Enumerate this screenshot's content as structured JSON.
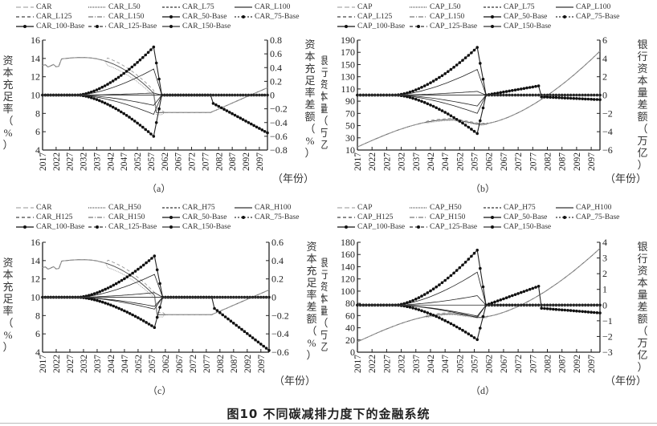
{
  "figure_caption": "图10   不同碳减排力度下的金融系统",
  "chart_data": [
    {
      "type": "line",
      "panel_label": "（a）",
      "legend": [
        "CAR",
        "CAR_L50",
        "CAR_L75",
        "CAR_L100",
        "CAR_L125",
        "CAR_L150",
        "CAR_50-Base",
        "CAR_75-Base",
        "CAR_100-Base",
        "CAR_125-Base",
        "CAR_150-Base"
      ],
      "ylabel": "资本充足率（%）",
      "y2label": "资本充足率差额（%）",
      "xlabel": "（年份）",
      "x_ticks": [
        "2017",
        "2022",
        "2027",
        "2032",
        "2037",
        "2042",
        "2047",
        "2052",
        "2057",
        "2062",
        "2067",
        "2072",
        "2077",
        "2082",
        "2087",
        "2092",
        "2097"
      ],
      "ylim": [
        4,
        16
      ],
      "y_ticks": [
        "4",
        "6",
        "8",
        "10",
        "12",
        "14",
        "16"
      ],
      "y2lim": [
        -0.8,
        0.8
      ],
      "y2_ticks": [
        "-0.8",
        "-0.6",
        "-0.4",
        "-0.2",
        "0",
        "0.2",
        "0.4",
        "0.6",
        "0.8"
      ],
      "levels": {
        "base_start": 13.2,
        "peak": 14.1,
        "peak_year": 2032,
        "trough": 8.1,
        "end": 10.8
      },
      "diff_peaks": {
        "pos": [
          0.7,
          0.38,
          0.03
        ],
        "neg": [
          -0.6,
          -0.28,
          -0.15
        ]
      },
      "post_2080_diff_end": -0.45
    },
    {
      "type": "line",
      "panel_label": "（b）",
      "legend": [
        "CAP",
        "CAP_L50",
        "CAP_L75",
        "CAP_L100",
        "CAP_L125",
        "CAP_L150",
        "CAP_50-Base",
        "CAP_75-Base",
        "CAP_100-Base",
        "CAP_125-Base",
        "CAP_150-Base"
      ],
      "ylabel": "银行资本量（万亿）",
      "y2label": "银行资本量差额（万亿）",
      "xlabel": "（年份）",
      "x_ticks": [
        "2017",
        "2022",
        "2027",
        "2032",
        "2037",
        "2042",
        "2047",
        "2052",
        "2057",
        "2062",
        "2067",
        "2072",
        "2077",
        "2082",
        "2087",
        "2092",
        "2097"
      ],
      "ylim": [
        10,
        190
      ],
      "y_ticks": [
        "10",
        "30",
        "50",
        "70",
        "90",
        "110",
        "130",
        "150",
        "170",
        "190"
      ],
      "y2lim": [
        -6,
        6
      ],
      "y2_ticks": [
        "-6",
        "-4",
        "-2",
        "0",
        "2",
        "4",
        "6"
      ],
      "levels": {
        "base_start": 15,
        "mid": 60,
        "trough": 52,
        "end": 172
      },
      "diff_peaks": {
        "pos": [
          5.2,
          2.8,
          0.4
        ],
        "neg": [
          -4.2,
          -2.0,
          -1.2
        ]
      },
      "post_2060_diff_peak": 1.0,
      "post_2080_diff_end": -0.5
    },
    {
      "type": "line",
      "panel_label": "（c）",
      "legend": [
        "CAR",
        "CAR_H50",
        "CAR_H75",
        "CAR_H100",
        "CAR_H125",
        "CAR_H150",
        "CAR_50-Base",
        "CAR_75-Base",
        "CAR_100-Base",
        "CAR_125-Base",
        "CAR_150-Base"
      ],
      "ylabel": "资本充足率（%）",
      "y2label": "资本充足率差额（%）",
      "xlabel": "（年份）",
      "x_ticks": [
        "2017",
        "2022",
        "2027",
        "2032",
        "2037",
        "2042",
        "2047",
        "2052",
        "2057",
        "2062",
        "2067",
        "2072",
        "2077",
        "2082",
        "2087",
        "2092",
        "2097"
      ],
      "ylim": [
        4,
        16
      ],
      "y_ticks": [
        "4",
        "6",
        "8",
        "10",
        "12",
        "14",
        "16"
      ],
      "y2lim": [
        -0.6,
        0.6
      ],
      "y2_ticks": [
        "-0.6",
        "-0.4",
        "-0.2",
        "0",
        "0.2",
        "0.4",
        "0.6"
      ],
      "levels": {
        "base_start": 13.2,
        "peak": 14.1,
        "peak_year": 2032,
        "trough": 8.1,
        "end": 10.8
      },
      "diff_peaks": {
        "pos": [
          0.45,
          0.25,
          0.05
        ],
        "neg": [
          -0.33,
          -0.13,
          -0.1
        ]
      },
      "post_2080_diff_end": -0.48
    },
    {
      "type": "line",
      "panel_label": "（d）",
      "legend": [
        "CAP",
        "CAP_H50",
        "CAP_H75",
        "CAP_H100",
        "CAP_H125",
        "CAP_H150",
        "CAP_50-Base",
        "CAP_75-Base",
        "CAP_100-Base",
        "CAP_125-Base",
        "CAP_150-Base"
      ],
      "ylabel": "银行资本量（万亿）",
      "y2label": "银行资本量差额（万亿）",
      "xlabel": "（年份）",
      "x_ticks": [
        "2017",
        "2022",
        "2027",
        "2032",
        "2037",
        "2042",
        "2047",
        "2052",
        "2057",
        "2062",
        "2067",
        "2072",
        "2077",
        "2082",
        "2087",
        "2092",
        "2097"
      ],
      "ylim": [
        0,
        180
      ],
      "y_ticks": [
        "0",
        "20",
        "40",
        "60",
        "80",
        "100",
        "120",
        "140",
        "160",
        "180"
      ],
      "y2lim": [
        -3,
        4
      ],
      "y2_ticks": [
        "-3",
        "-2",
        "-1",
        "0",
        "1",
        "2",
        "3",
        "4"
      ],
      "levels": {
        "base_start": 17,
        "mid": 63,
        "trough": 57,
        "end": 170
      },
      "diff_peaks": {
        "pos": [
          3.5,
          2.1,
          0.6
        ],
        "neg": [
          -2.2,
          -0.8,
          -0.7
        ]
      },
      "post_2060_diff_peak": 1.2,
      "post_2080_diff_end": -0.5
    }
  ]
}
